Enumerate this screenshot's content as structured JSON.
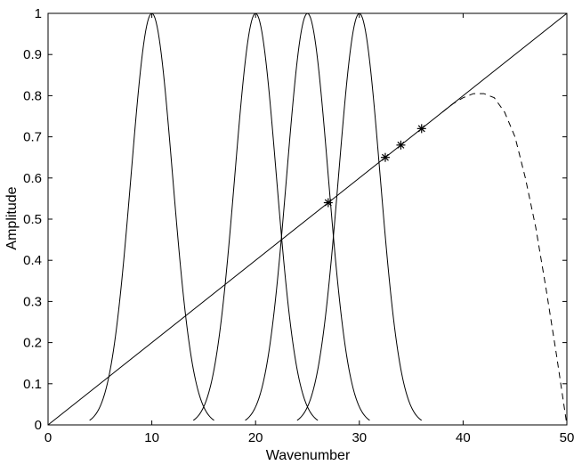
{
  "chart_data": {
    "type": "line",
    "title": "",
    "xlabel": "Wavenumber",
    "ylabel": "Amplitude",
    "xlim": [
      0,
      50
    ],
    "ylim": [
      0,
      1
    ],
    "xticks": [
      0,
      10,
      20,
      30,
      40,
      50
    ],
    "xtick_labels": [
      "0",
      "10",
      "20",
      "30",
      "40",
      "50"
    ],
    "yticks": [
      0,
      0.1,
      0.2,
      0.3,
      0.4,
      0.5,
      0.6,
      0.7,
      0.8,
      0.9,
      1
    ],
    "ytick_labels": [
      "0",
      "0.1",
      "0.2",
      "0.3",
      "0.4",
      "0.5",
      "0.6",
      "0.7",
      "0.8",
      "0.9",
      "1"
    ],
    "grid": false,
    "legend": "none",
    "series": [
      {
        "style": "solid",
        "x": [
          0,
          50
        ],
        "y": [
          0,
          1
        ]
      },
      {
        "style": "dashed",
        "x": [
          38,
          39,
          40,
          41,
          42,
          43,
          44,
          45,
          46,
          47,
          48,
          49,
          50
        ],
        "y": [
          0.76,
          0.78,
          0.795,
          0.805,
          0.805,
          0.795,
          0.76,
          0.7,
          0.6,
          0.48,
          0.33,
          0.17,
          0.0
        ]
      },
      {
        "style": "solid",
        "peak_center": 10,
        "x_range": [
          4,
          16
        ],
        "shape": "gaussian",
        "peak": 1.0
      },
      {
        "style": "solid",
        "peak_center": 20,
        "x_range": [
          14,
          26
        ],
        "shape": "gaussian",
        "peak": 1.0
      },
      {
        "style": "solid",
        "peak_center": 25,
        "x_range": [
          19,
          31
        ],
        "shape": "gaussian",
        "peak": 1.0
      },
      {
        "style": "solid",
        "peak_center": 30,
        "x_range": [
          24,
          36
        ],
        "shape": "gaussian",
        "peak": 1.0
      }
    ],
    "markers": {
      "symbol": "*",
      "points": [
        {
          "x": 27,
          "y": 0.54
        },
        {
          "x": 32.5,
          "y": 0.65
        },
        {
          "x": 34,
          "y": 0.68
        },
        {
          "x": 36,
          "y": 0.72
        }
      ]
    }
  }
}
